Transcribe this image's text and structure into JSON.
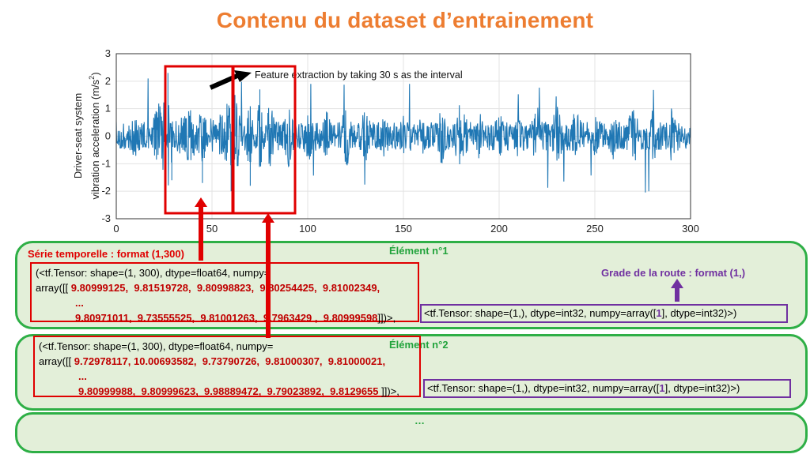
{
  "slide": {
    "title": "Contenu du dataset d’entrainement"
  },
  "chart_data": {
    "type": "line",
    "title": "",
    "ylabel_line1": "Driver-seat system",
    "ylabel_line2": "vibration acceleration (m/s",
    "ylabel_sup": "2",
    "ylabel_close": ")",
    "xlim": [
      0,
      300
    ],
    "ylim": [
      -3,
      3
    ],
    "xticks": [
      "0",
      "50",
      "100",
      "150",
      "200",
      "250",
      "300"
    ],
    "yticks": [
      "-3",
      "-2",
      "-1",
      "0",
      "1",
      "2",
      "3"
    ],
    "annotation": "Feature extraction by taking 30 s as the interval",
    "grid": true,
    "series_color": "#1F77B4",
    "note": "dense random-looking vibration signal, amplitude mostly within ±1.2, spikes to ±2.3",
    "series": [
      {
        "x": [
          0,
          10,
          20,
          26,
          27,
          29,
          30,
          40,
          45,
          50,
          55,
          60,
          62,
          65,
          70,
          75,
          80,
          90,
          100,
          110,
          120,
          130,
          140,
          150,
          160,
          170,
          180,
          190,
          200,
          210,
          220,
          230,
          240,
          250,
          260,
          270,
          280,
          290,
          300
        ],
        "y": [
          0.1,
          0.8,
          -0.9,
          -1.9,
          2.3,
          -1.6,
          0.5,
          1.2,
          -1.7,
          1.1,
          -1.2,
          -2.0,
          1.5,
          0.9,
          -1.8,
          1.7,
          -1.4,
          1.2,
          -1.1,
          1.0,
          -1.3,
          1.1,
          -0.9,
          0.8,
          -1.0,
          1.1,
          -1.4,
          1.0,
          -1.0,
          0.9,
          -1.2,
          1.3,
          -1.1,
          0.9,
          -1.0,
          1.3,
          -1.2,
          1.1,
          -0.8
        ]
      }
    ]
  },
  "element1": {
    "name": "Élément n°1",
    "series_label": "Série temporelle : format (1,300)",
    "line1": "(<tf.Tensor: shape=(1, 300), dtype=float64, numpy=",
    "line2_prefix": "array([[ ",
    "line2_values": "9.80999125,  9.81519728,  9.80998823,  9.80254425,  9.81002349,",
    "ellipsis": "...",
    "line4_values": "9.80971011,  9.73555525,  9.81001263,  9.7963429 ,  9.80999598",
    "line4_suffix": "]])>,",
    "label_prefix": "<tf.Tensor: shape=(1,), dtype=int32, numpy=array([",
    "label_value": "1",
    "label_suffix": "], dtype=int32)>)",
    "grade_label": "Grade de la route : format (1,)"
  },
  "element2": {
    "name": "Élément n°2",
    "line1": "(<tf.Tensor: shape=(1, 300), dtype=float64, numpy=",
    "line2_prefix": "array([[ ",
    "line2_values": "9.72978117, 10.00693582,  9.73790726,  9.81000307,  9.81000021,",
    "ellipsis": "...",
    "line4_values": "9.80999988,  9.80999623,  9.98889472,  9.79023892,  9.8129655 ",
    "line4_suffix": "]])>,",
    "label_prefix": "<tf.Tensor: shape=(1,), dtype=int32, numpy=array([",
    "label_value": "1",
    "label_suffix": "], dtype=int32)>)"
  },
  "element3": {
    "ellipsis": "…"
  }
}
